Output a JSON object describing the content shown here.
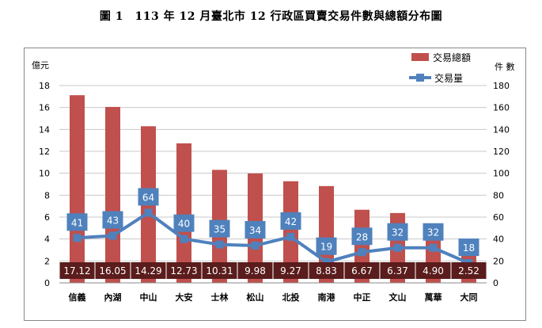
{
  "page": {
    "title": "圖 1　113 年 12 月臺北市 12 行政區買賣交易件數與總額分布圖"
  },
  "colors": {
    "bar": "#c0504d",
    "bar_label_bg": "#5a1c1c",
    "line": "#4f81bd",
    "line_label_bg": "#4f81bd",
    "grid": "#c8c8c8"
  },
  "chart_data": {
    "type": "bar",
    "categories": [
      "信義",
      "內湖",
      "中山",
      "大安",
      "士林",
      "松山",
      "北投",
      "南港",
      "中正",
      "文山",
      "萬華",
      "大同"
    ],
    "series": [
      {
        "name": "交易總額",
        "kind": "bar",
        "axis": "left",
        "values": [
          17.12,
          16.05,
          14.29,
          12.73,
          10.31,
          9.98,
          9.27,
          8.83,
          6.67,
          6.37,
          4.9,
          2.52
        ],
        "labels": [
          "17.12",
          "16.05",
          "14.29",
          "12.73",
          "10.31",
          "9.98",
          "9.27",
          "8.83",
          "6.67",
          "6.37",
          "4.90",
          "2.52"
        ]
      },
      {
        "name": "交易量",
        "kind": "line",
        "axis": "right",
        "values": [
          41,
          43,
          64,
          40,
          35,
          34,
          42,
          19,
          28,
          32,
          32,
          18
        ],
        "labels": [
          "41",
          "43",
          "64",
          "40",
          "35",
          "34",
          "42",
          "19",
          "28",
          "32",
          "32",
          "18"
        ]
      }
    ],
    "left_axis": {
      "label": "億元",
      "ylim": [
        0,
        18
      ],
      "ticks": [
        "0",
        "2",
        "4",
        "6",
        "8",
        "10",
        "12",
        "14",
        "16",
        "18"
      ]
    },
    "right_axis": {
      "label": "件 數",
      "ylim": [
        0,
        180
      ],
      "ticks": [
        "0",
        "20",
        "40",
        "60",
        "80",
        "100",
        "120",
        "140",
        "160",
        "180"
      ]
    },
    "grid": true,
    "legend_placement": "top-right"
  }
}
